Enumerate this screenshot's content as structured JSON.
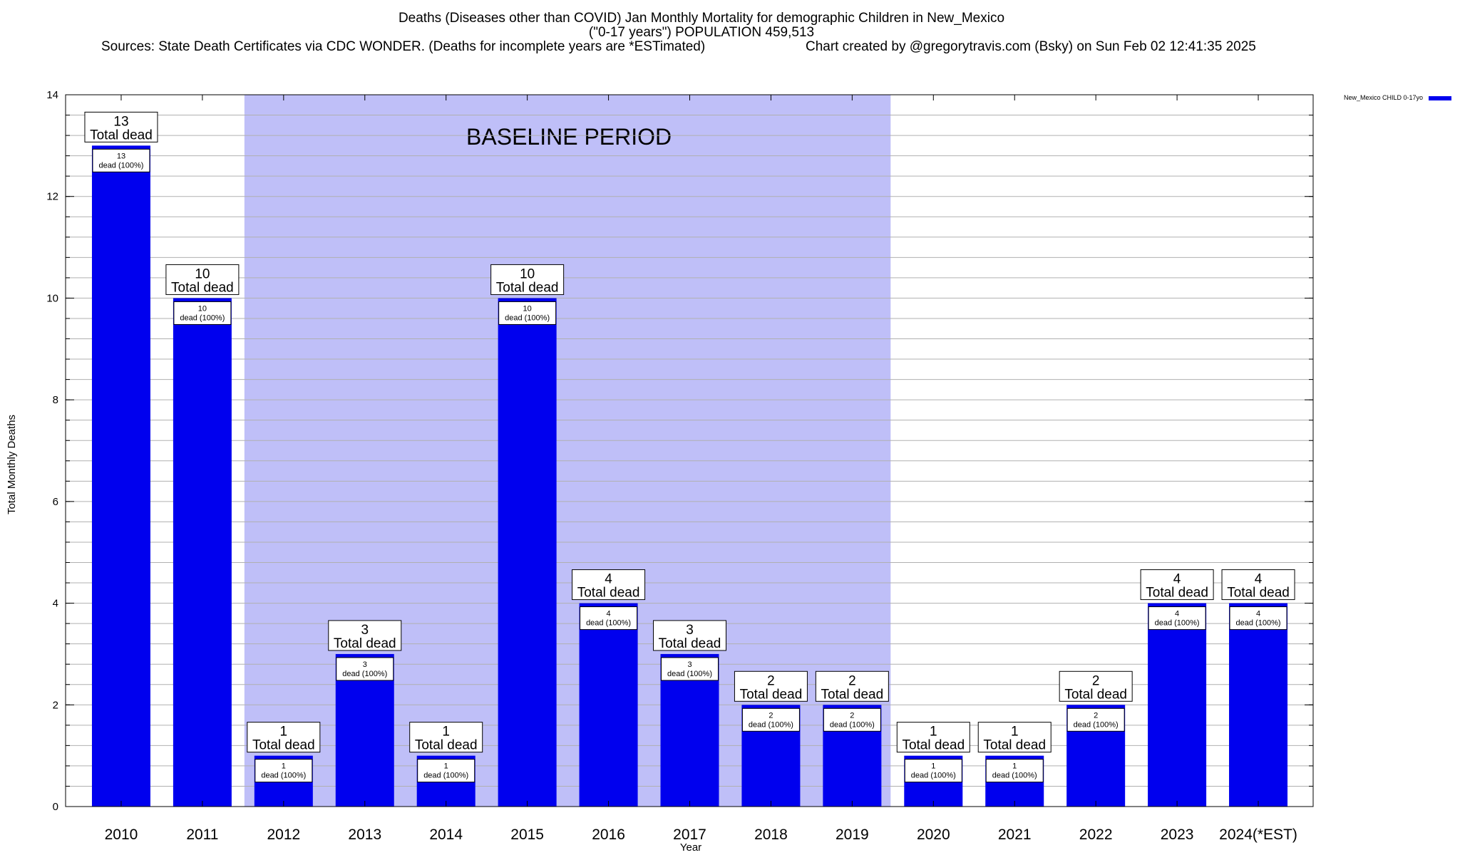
{
  "chart_data": {
    "type": "bar",
    "title": "Deaths (Diseases other than COVID) Jan Monthly Mortality for demographic Children in New_Mexico",
    "subtitle": "(\"0-17 years\") POPULATION 459,513",
    "source": "Sources: State Death Certificates via CDC WONDER. (Deaths for incomplete years are *ESTimated)",
    "credit": "Chart created by @gregorytravis.com (Bsky) on Sun Feb 02 12:41:35 2025",
    "xlabel": "Year",
    "ylabel": "Total Monthly Deaths",
    "ylim": [
      0,
      14
    ],
    "yticks": [
      0,
      2,
      4,
      6,
      8,
      10,
      12,
      14
    ],
    "yminor_step": 0.4,
    "grid": true,
    "legend": {
      "label": "New_Mexico CHILD 0-17yo",
      "placement": "top-right outside"
    },
    "baseline_label": "BASELINE PERIOD",
    "baseline_range": [
      "2012",
      "2019"
    ],
    "categories": [
      "2010",
      "2011",
      "2012",
      "2013",
      "2014",
      "2015",
      "2016",
      "2017",
      "2018",
      "2019",
      "2020",
      "2021",
      "2022",
      "2023",
      "2024(*EST)"
    ],
    "series": [
      {
        "name": "New_Mexico CHILD 0-17yo",
        "values": [
          13,
          10,
          1,
          3,
          1,
          10,
          4,
          3,
          2,
          2,
          1,
          1,
          2,
          4,
          4
        ]
      }
    ],
    "total_label_suffix": "Total dead",
    "bar_label_suffix": "dead (100%)",
    "colors": {
      "bar": "#0000ee",
      "baseline_band": "#bfbff8",
      "grid": "#b0b0b0"
    }
  }
}
